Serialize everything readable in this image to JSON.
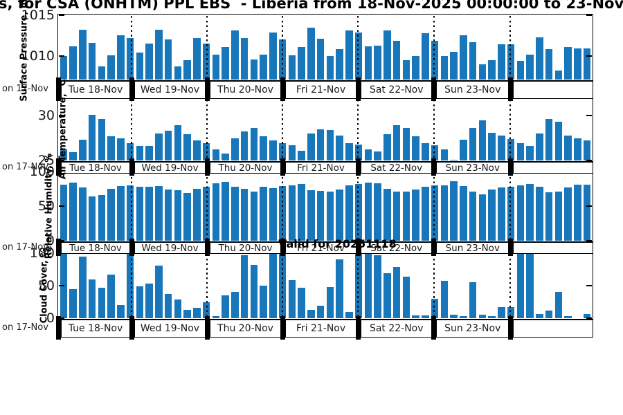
{
  "title": "s, for CSA (ONHTM) PPL EBS  - Liberia from 18-Nov-2025 00:00:00 to 23-Nov-",
  "valid_label": "Valid for 20251118",
  "colors": {
    "bar": "#1777ba",
    "axis": "#000000",
    "tick_text": "#1a1a1a"
  },
  "chart_data": {
    "type": "bar",
    "x_day_labels": [
      "Tue 18-Nov",
      "Wed 19-Nov",
      "Thu 20-Nov",
      "Fri 21-Nov",
      "Sat 22-Nov",
      "Sun 23-Nov",
      ""
    ],
    "leading_label": "on 17-Nov",
    "bars_per_day": 8,
    "legend": "none",
    "grid": "dotted vertical day boundaries",
    "panels": [
      {
        "name": "surface-pressure",
        "ylabel": "Surface Pressure, mb",
        "yticks": [
          1015,
          1010
        ],
        "ylim": [
          1007.1,
          1015
        ],
        "values": [
          1010.0,
          1011.2,
          1013.2,
          1011.6,
          1008.7,
          1010.1,
          1012.5,
          1012.2,
          1010.4,
          1011.5,
          1013.2,
          1012.0,
          1008.7,
          1009.5,
          1012.2,
          1011.5,
          1010.2,
          1011.1,
          1013.1,
          1012.2,
          1009.6,
          1010.2,
          1012.9,
          1012.0,
          1010.1,
          1011.1,
          1013.5,
          1012.1,
          1010.0,
          1010.8,
          1013.1,
          1012.9,
          1011.2,
          1011.3,
          1013.1,
          1011.9,
          1009.5,
          1010.0,
          1012.8,
          1011.9,
          1010.0,
          1010.5,
          1012.5,
          1011.7,
          1009.0,
          1009.5,
          1011.4,
          1011.4,
          1009.4,
          1010.2,
          1012.3,
          1010.8,
          1008.2,
          1011.1,
          1010.9,
          1010.9
        ]
      },
      {
        "name": "air-temperature",
        "ylabel": "Air Temperature, °C",
        "yticks": [
          30,
          25
        ],
        "ylim": [
          25,
          31.85
        ],
        "values": [
          26.2,
          25.9,
          27.3,
          30.1,
          29.6,
          27.7,
          27.5,
          26.9,
          26.6,
          26.6,
          28.0,
          28.3,
          28.9,
          27.9,
          27.2,
          26.9,
          26.2,
          25.8,
          27.5,
          28.2,
          28.6,
          27.7,
          27.2,
          26.9,
          26.7,
          26.1,
          28.0,
          28.5,
          28.4,
          27.8,
          26.9,
          26.8,
          26.2,
          26.0,
          27.9,
          28.9,
          28.6,
          27.7,
          26.9,
          26.7,
          26.2,
          25.1,
          27.3,
          28.6,
          29.5,
          28.1,
          27.8,
          27.4,
          26.9,
          26.6,
          28.0,
          29.6,
          29.3,
          27.8,
          27.5,
          27.2
        ]
      },
      {
        "name": "relative-humidity",
        "ylabel": "Relative Humidity, %",
        "yticks": [
          100,
          50,
          0
        ],
        "ylim": [
          0,
          100
        ],
        "values": [
          81,
          84,
          77,
          64,
          66,
          75,
          79,
          80,
          78,
          78,
          79,
          74,
          73,
          69,
          75,
          78,
          83,
          85,
          78,
          75,
          71,
          78,
          76,
          79,
          80,
          82,
          73,
          72,
          71,
          74,
          80,
          82,
          84,
          83,
          75,
          71,
          71,
          74,
          78,
          80,
          80,
          86,
          79,
          71,
          67,
          74,
          77,
          78,
          80,
          82,
          78,
          70,
          71,
          77,
          81,
          81
        ]
      },
      {
        "name": "cloud-cover",
        "ylabel": "Cloud Cover, %",
        "yticks": [
          100,
          50,
          0
        ],
        "ylim": [
          0,
          100
        ],
        "values": [
          100,
          45,
          95,
          60,
          47,
          67,
          20,
          100,
          49,
          53,
          81,
          37,
          29,
          13,
          16,
          25,
          3,
          35,
          40,
          97,
          82,
          50,
          100,
          100,
          59,
          47,
          13,
          19,
          48,
          91,
          10,
          100,
          100,
          97,
          69,
          79,
          64,
          4,
          4,
          30,
          57,
          5,
          3,
          55,
          5,
          3,
          17,
          17,
          100,
          100,
          6,
          12,
          40,
          3,
          0,
          6
        ]
      }
    ]
  }
}
